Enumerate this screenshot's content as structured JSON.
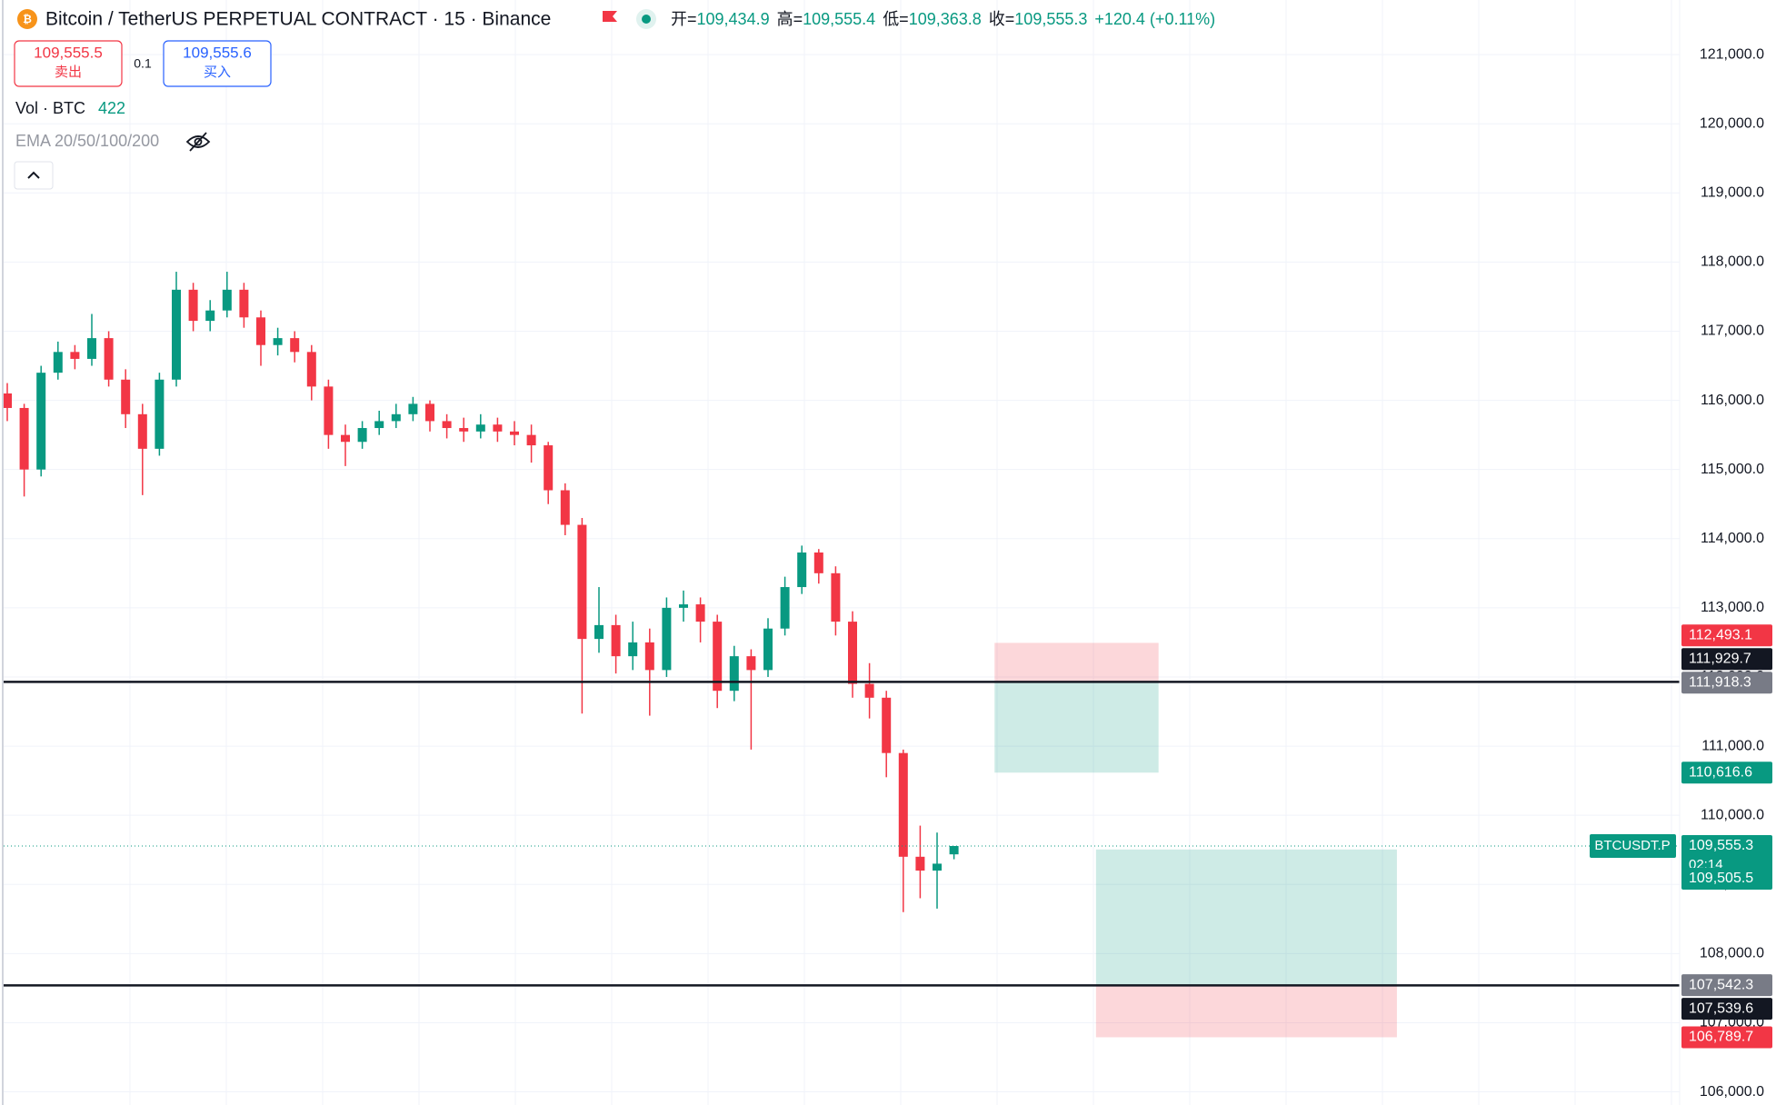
{
  "header": {
    "symbol_title": "Bitcoin / TetherUS PERPETUAL CONTRACT · 15 · Binance",
    "ohlc": [
      {
        "label": "开=",
        "value": "109,434.9"
      },
      {
        "label": "高=",
        "value": "109,555.4"
      },
      {
        "label": "低=",
        "value": "109,363.8"
      },
      {
        "label": "收=",
        "value": "109,555.3"
      }
    ],
    "change": "+120.4 (+0.11%)"
  },
  "order": {
    "sell_price": "109,555.5",
    "sell_label": "卖出",
    "quantity": "0.1",
    "buy_price": "109,555.6",
    "buy_label": "买入"
  },
  "indicators": {
    "volume_label": "Vol · BTC",
    "volume_value": "422",
    "ema_label": "EMA 20/50/100/200"
  },
  "chart_data": {
    "type": "candlestick",
    "open": [
      116100,
      115890,
      115000,
      116400,
      116700,
      116600,
      116900,
      116300,
      115800,
      115300,
      116300,
      117600,
      117150,
      117300,
      117600,
      117200,
      116800,
      116900,
      116700,
      116200,
      115500,
      115400,
      115600,
      115700,
      115800,
      115950,
      115700,
      115600,
      115550,
      115650,
      115550,
      115500,
      115350,
      114700,
      114200,
      112550,
      112750,
      112300,
      112500,
      112100,
      113000,
      113050,
      112800,
      111800,
      112300,
      112100,
      112700,
      113300,
      113800,
      113500,
      112800,
      111900,
      111700,
      110900,
      109400,
      109200,
      109434.9
    ],
    "high": [
      116250,
      115950,
      116500,
      116850,
      116800,
      117250,
      117000,
      116450,
      115950,
      116400,
      117860,
      117700,
      117450,
      117860,
      117700,
      117300,
      117050,
      117000,
      116800,
      116300,
      115650,
      115700,
      115850,
      115950,
      116050,
      116000,
      115800,
      115750,
      115800,
      115750,
      115700,
      115650,
      115400,
      114800,
      114300,
      113300,
      112900,
      112800,
      112700,
      113150,
      113250,
      113150,
      112900,
      112450,
      112400,
      112850,
      113450,
      113900,
      113850,
      113600,
      112950,
      112200,
      111800,
      110950,
      109850,
      109750,
      109555.4
    ],
    "low": [
      115700,
      114610,
      114900,
      116300,
      116450,
      116500,
      116200,
      115600,
      114630,
      115200,
      116200,
      117000,
      117000,
      117200,
      117050,
      116500,
      116650,
      116550,
      116000,
      115300,
      115050,
      115300,
      115500,
      115600,
      115700,
      115550,
      115450,
      115400,
      115450,
      115400,
      115350,
      115100,
      114500,
      114050,
      111470,
      112350,
      112050,
      112100,
      111440,
      112000,
      112800,
      112500,
      111550,
      111650,
      110950,
      112000,
      112600,
      113200,
      113350,
      112600,
      111700,
      111400,
      110550,
      108600,
      108800,
      108650,
      109363.8
    ],
    "close": [
      115890,
      115000,
      116400,
      116700,
      116600,
      116900,
      116300,
      115800,
      115300,
      116300,
      117600,
      117150,
      117300,
      117600,
      117200,
      116800,
      116900,
      116700,
      116200,
      115500,
      115400,
      115600,
      115700,
      115800,
      115950,
      115700,
      115600,
      115550,
      115650,
      115550,
      115500,
      115350,
      114700,
      114200,
      112550,
      112750,
      112300,
      112500,
      112100,
      113000,
      113050,
      112800,
      111800,
      112300,
      112100,
      112700,
      113300,
      113800,
      113500,
      112800,
      111900,
      111700,
      110900,
      109400,
      109200,
      109300,
      109555.3
    ],
    "colors": {
      "up": "#089981",
      "down": "#f23645",
      "entry": "#787b86",
      "line": "#131722"
    },
    "ylim": [
      105810,
      121790
    ],
    "yticks": [
      {
        "value": 106000,
        "label": "106,000.0"
      },
      {
        "value": 107000,
        "label": "107,000.0"
      },
      {
        "value": 108000,
        "label": "108,000.0"
      },
      {
        "value": 109000,
        "label": "109,000.0"
      },
      {
        "value": 110000,
        "label": "110,000.0"
      },
      {
        "value": 111000,
        "label": "111,000.0"
      },
      {
        "value": 112000,
        "label": "112,000.0"
      },
      {
        "value": 113000,
        "label": "113,000.0"
      },
      {
        "value": 114000,
        "label": "114,000.0"
      },
      {
        "value": 115000,
        "label": "115,000.0"
      },
      {
        "value": 116000,
        "label": "116,000.0"
      },
      {
        "value": 117000,
        "label": "117,000.0"
      },
      {
        "value": 118000,
        "label": "118,000.0"
      },
      {
        "value": 119000,
        "label": "119,000.0"
      },
      {
        "value": 120000,
        "label": "120,000.0"
      },
      {
        "value": 121000,
        "label": "121,000.0"
      }
    ],
    "grid": true,
    "hlines": [
      {
        "value": 111929.7,
        "label": "111,929.7"
      },
      {
        "value": 107539.6,
        "label": "107,539.6"
      }
    ],
    "last_price": {
      "value": 109555.3,
      "label": "109,555.3",
      "countdown": "02:14",
      "symbol": "BTCUSDT.P"
    },
    "positions": [
      {
        "entry": 111918.3,
        "entry_label": "111,918.3",
        "target": 110616.6,
        "target_label": "110,616.6",
        "stop": 112493.1,
        "stop_label": "112,493.1",
        "bars": [
          58.4,
          68.1
        ]
      },
      {
        "entry": 107542.3,
        "entry_label": "107,542.3",
        "target": 109505.5,
        "target_label": "109,505.5",
        "stop": 106789.7,
        "stop_label": "106,789.7",
        "bars": [
          64.4,
          82.2
        ]
      }
    ]
  }
}
